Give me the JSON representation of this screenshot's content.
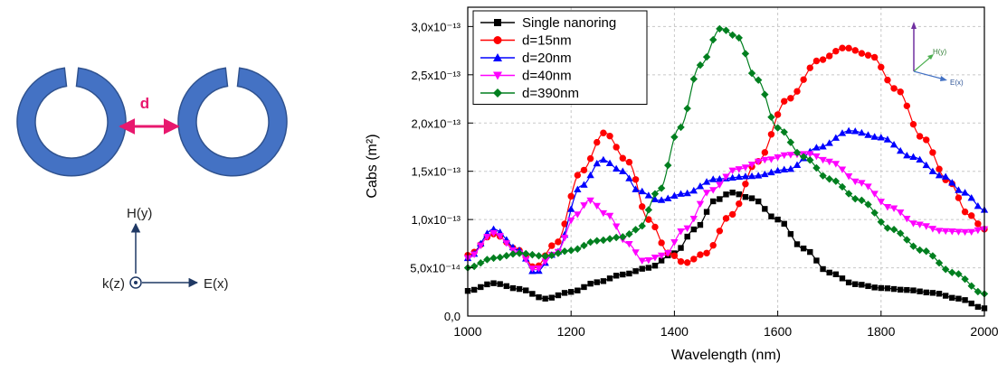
{
  "schematic": {
    "gap_label": "d",
    "axes": {
      "h_label": "H(y)",
      "e_label": "E(x)",
      "k_label": "k(z)"
    },
    "ring_color": "#4472C4",
    "gap_color": "#E8186E"
  },
  "chart_data": {
    "type": "line",
    "xlabel": "Wavelength (nm)",
    "ylabel": "Cabs (m²)",
    "xlim": [
      1000,
      2000
    ],
    "ylim": [
      0,
      3.2e-13
    ],
    "xticks": [
      1000,
      1200,
      1400,
      1600,
      1800,
      2000
    ],
    "yticks": [
      {
        "value": 0,
        "label": "0,0"
      },
      {
        "value": 5e-14,
        "label": "5,0x10⁻¹⁴"
      },
      {
        "value": 1e-13,
        "label": "1,0x10⁻¹³"
      },
      {
        "value": 1.5e-13,
        "label": "1,5x10⁻¹³"
      },
      {
        "value": 2e-13,
        "label": "2,0x10⁻¹³"
      },
      {
        "value": 2.5e-13,
        "label": "2,5x10⁻¹³"
      },
      {
        "value": 3e-13,
        "label": "3,0x10⁻¹³"
      }
    ],
    "grid": true,
    "legend_position": "top-left",
    "inset_axes": {
      "h_label": "H(y)",
      "e_label": "E(x)"
    },
    "series": [
      {
        "name": "Single nanoring",
        "color": "#000000",
        "marker": "square",
        "points": [
          [
            1000,
            2.6e-14
          ],
          [
            1050,
            3.4e-14
          ],
          [
            1100,
            2.8e-14
          ],
          [
            1150,
            1.8e-14
          ],
          [
            1200,
            2.5e-14
          ],
          [
            1250,
            3.5e-14
          ],
          [
            1300,
            4.3e-14
          ],
          [
            1350,
            5e-14
          ],
          [
            1400,
            6.5e-14
          ],
          [
            1440,
            9e-14
          ],
          [
            1480,
            1.2e-13
          ],
          [
            1510,
            1.28e-13
          ],
          [
            1550,
            1.22e-13
          ],
          [
            1600,
            1e-13
          ],
          [
            1650,
            7e-14
          ],
          [
            1700,
            4.5e-14
          ],
          [
            1750,
            3.3e-14
          ],
          [
            1800,
            2.9e-14
          ],
          [
            1850,
            2.7e-14
          ],
          [
            1900,
            2.4e-14
          ],
          [
            1950,
            1.8e-14
          ],
          [
            2000,
            8e-15
          ]
        ]
      },
      {
        "name": "d=15nm",
        "color": "#FF0000",
        "marker": "circle",
        "points": [
          [
            1000,
            6.3e-14
          ],
          [
            1050,
            8.5e-14
          ],
          [
            1100,
            6.8e-14
          ],
          [
            1130,
            5e-14
          ],
          [
            1170,
            7.5e-14
          ],
          [
            1220,
            1.5e-13
          ],
          [
            1265,
            1.9e-13
          ],
          [
            1310,
            1.6e-13
          ],
          [
            1350,
            1e-13
          ],
          [
            1390,
            6.5e-14
          ],
          [
            1420,
            5.5e-14
          ],
          [
            1460,
            6.5e-14
          ],
          [
            1510,
            1.05e-13
          ],
          [
            1560,
            1.6e-13
          ],
          [
            1620,
            2.25e-13
          ],
          [
            1680,
            2.65e-13
          ],
          [
            1730,
            2.78e-13
          ],
          [
            1780,
            2.7e-13
          ],
          [
            1830,
            2.35e-13
          ],
          [
            1880,
            1.85e-13
          ],
          [
            1930,
            1.4e-13
          ],
          [
            1970,
            1.05e-13
          ],
          [
            2000,
            9e-14
          ]
        ]
      },
      {
        "name": "d=20nm",
        "color": "#0000FF",
        "marker": "triangle-up",
        "points": [
          [
            1000,
            6e-14
          ],
          [
            1050,
            9e-14
          ],
          [
            1100,
            6.8e-14
          ],
          [
            1130,
            4.5e-14
          ],
          [
            1170,
            6.5e-14
          ],
          [
            1220,
            1.35e-13
          ],
          [
            1260,
            1.62e-13
          ],
          [
            1300,
            1.5e-13
          ],
          [
            1330,
            1.3e-13
          ],
          [
            1370,
            1.2e-13
          ],
          [
            1420,
            1.27e-13
          ],
          [
            1480,
            1.42e-13
          ],
          [
            1550,
            1.45e-13
          ],
          [
            1620,
            1.52e-13
          ],
          [
            1680,
            1.75e-13
          ],
          [
            1740,
            1.92e-13
          ],
          [
            1800,
            1.85e-13
          ],
          [
            1860,
            1.65e-13
          ],
          [
            1920,
            1.45e-13
          ],
          [
            1960,
            1.28e-13
          ],
          [
            2000,
            1.1e-13
          ]
        ]
      },
      {
        "name": "d=40nm",
        "color": "#FF00FF",
        "marker": "triangle-down",
        "points": [
          [
            1000,
            6e-14
          ],
          [
            1050,
            8.6e-14
          ],
          [
            1100,
            6.5e-14
          ],
          [
            1130,
            4.8e-14
          ],
          [
            1170,
            6.5e-14
          ],
          [
            1210,
            1.05e-13
          ],
          [
            1235,
            1.2e-13
          ],
          [
            1270,
            1.05e-13
          ],
          [
            1310,
            7.5e-14
          ],
          [
            1340,
            5.7e-14
          ],
          [
            1380,
            6.3e-14
          ],
          [
            1420,
            9e-14
          ],
          [
            1470,
            1.3e-13
          ],
          [
            1520,
            1.52e-13
          ],
          [
            1580,
            1.62e-13
          ],
          [
            1620,
            1.67e-13
          ],
          [
            1660,
            1.68e-13
          ],
          [
            1700,
            1.6e-13
          ],
          [
            1760,
            1.38e-13
          ],
          [
            1820,
            1.12e-13
          ],
          [
            1870,
            9.5e-14
          ],
          [
            1920,
            8.8e-14
          ],
          [
            1970,
            8.7e-14
          ],
          [
            2000,
            9e-14
          ]
        ]
      },
      {
        "name": "d=390nm",
        "color": "#007F1F",
        "marker": "diamond",
        "points": [
          [
            1000,
            5e-14
          ],
          [
            1050,
            6e-14
          ],
          [
            1100,
            6.5e-14
          ],
          [
            1150,
            6.2e-14
          ],
          [
            1200,
            6.8e-14
          ],
          [
            1250,
            7.8e-14
          ],
          [
            1300,
            8.2e-14
          ],
          [
            1330,
            9e-14
          ],
          [
            1370,
            1.3e-13
          ],
          [
            1410,
            1.95e-13
          ],
          [
            1450,
            2.6e-13
          ],
          [
            1490,
            2.98e-13
          ],
          [
            1520,
            2.9e-13
          ],
          [
            1560,
            2.45e-13
          ],
          [
            1600,
            1.95e-13
          ],
          [
            1650,
            1.65e-13
          ],
          [
            1700,
            1.42e-13
          ],
          [
            1760,
            1.2e-13
          ],
          [
            1820,
            9e-14
          ],
          [
            1880,
            6.8e-14
          ],
          [
            1940,
            4.5e-14
          ],
          [
            2000,
            2.3e-14
          ]
        ]
      }
    ]
  }
}
